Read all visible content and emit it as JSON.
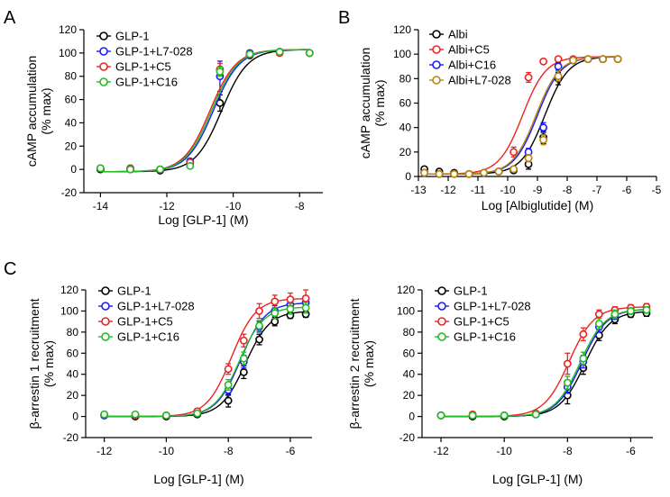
{
  "chart_data": [
    {
      "panel": "A",
      "type": "scatter",
      "ylabel_line1": "cAMP accumulation",
      "ylabel_line2": "(% max)",
      "xlabel": "Log [GLP-1] (M)",
      "xlim": [
        -14.5,
        -7.3
      ],
      "ylim": [
        -20,
        120
      ],
      "xticks": [
        -14,
        -12,
        -10,
        -8
      ],
      "yticks": [
        -20,
        0,
        20,
        40,
        60,
        80,
        100,
        120
      ],
      "x": [
        -14,
        -13.1,
        -12.2,
        -11.3,
        -10.4,
        -9.5,
        -8.6,
        -7.7
      ],
      "series": [
        {
          "name": "GLP-1",
          "color": "#000000",
          "values": [
            0,
            0,
            -1,
            5,
            57,
            98,
            101,
            100
          ],
          "err": [
            2,
            2,
            2,
            2,
            7,
            2,
            2,
            2
          ],
          "ec50": -10.35,
          "bottom": -2,
          "top": 103
        },
        {
          "name": "GLP-1+L7-028",
          "color": "#1a1aff",
          "values": [
            1,
            1,
            0,
            7,
            80,
            100,
            101,
            100
          ],
          "err": [
            2,
            2,
            2,
            2,
            13,
            2,
            2,
            2
          ],
          "ec50": -10.6,
          "bottom": -2,
          "top": 103
        },
        {
          "name": "GLP-1+C5",
          "color": "#ee2222",
          "values": [
            1,
            1,
            0,
            6,
            86,
            99,
            100,
            100
          ],
          "err": [
            2,
            2,
            2,
            2,
            5,
            2,
            2,
            2
          ],
          "ec50": -10.7,
          "bottom": -2,
          "top": 103
        },
        {
          "name": "GLP-1+C16",
          "color": "#22bb22",
          "values": [
            1,
            0,
            0,
            3,
            84,
            99,
            101,
            100
          ],
          "err": [
            2,
            2,
            2,
            2,
            4,
            2,
            2,
            2
          ],
          "ec50": -10.65,
          "bottom": -2,
          "top": 103
        }
      ]
    },
    {
      "panel": "B",
      "type": "scatter",
      "ylabel_line1": "cAMP accumulation",
      "ylabel_line2": "(% max)",
      "xlabel": "Log [Albiglutide] (M)",
      "xlim": [
        -13,
        -5
      ],
      "ylim": [
        0,
        120
      ],
      "xticks": [
        -13,
        -12,
        -11,
        -10,
        -9,
        -8,
        -7,
        -6,
        -5
      ],
      "yticks": [
        0,
        20,
        40,
        60,
        80,
        100,
        120
      ],
      "x": [
        -12.8,
        -12.3,
        -11.8,
        -11.3,
        -10.8,
        -10.3,
        -9.8,
        -9.3,
        -8.8,
        -8.3,
        -7.8,
        -7.3,
        -6.8,
        -6.3
      ],
      "series": [
        {
          "name": "Albi",
          "color": "#000000",
          "values": [
            6,
            4,
            3,
            2,
            3,
            4,
            5,
            10,
            32,
            80,
            95,
            96,
            96,
            96
          ],
          "err": [
            2,
            2,
            2,
            2,
            2,
            2,
            2,
            4,
            5,
            5,
            2,
            2,
            2,
            2
          ],
          "ec50": -8.75,
          "bottom": 2,
          "top": 98
        },
        {
          "name": "Albi+C5",
          "color": "#ee2222",
          "values": [
            3,
            2,
            2,
            2,
            3,
            4,
            20,
            81,
            94,
            96,
            96,
            96,
            96,
            96
          ],
          "err": [
            2,
            2,
            2,
            2,
            2,
            2,
            4,
            4,
            2,
            2,
            2,
            2,
            2,
            2
          ],
          "ec50": -9.5,
          "bottom": 2,
          "top": 98
        },
        {
          "name": "Albi+C16",
          "color": "#1a1aff",
          "values": [
            3,
            2,
            2,
            2,
            3,
            4,
            6,
            20,
            40,
            90,
            95,
            96,
            96,
            96
          ],
          "err": [
            2,
            2,
            2,
            2,
            2,
            2,
            2,
            3,
            4,
            3,
            2,
            2,
            2,
            2
          ],
          "ec50": -9.0,
          "bottom": 2,
          "top": 98
        },
        {
          "name": "Albi+L7-028",
          "color": "#b8860b",
          "values": [
            3,
            2,
            2,
            2,
            3,
            4,
            6,
            15,
            30,
            82,
            95,
            96,
            96,
            96
          ],
          "err": [
            2,
            2,
            2,
            2,
            2,
            2,
            2,
            3,
            4,
            4,
            2,
            2,
            2,
            2
          ],
          "ec50": -9.05,
          "bottom": 2,
          "top": 98
        }
      ]
    },
    {
      "panel": "C",
      "type": "scatter",
      "ylabel_line1": "β-arrestin 1 recruitment",
      "ylabel_line2": "(% max)",
      "xlabel": "Log [GLP-1] (M)",
      "xlim": [
        -12.6,
        -5.3
      ],
      "ylim": [
        -20,
        120
      ],
      "xticks": [
        -12,
        -10,
        -8,
        -6
      ],
      "yticks": [
        -20,
        0,
        20,
        40,
        60,
        80,
        100,
        120
      ],
      "x": [
        -12,
        -11,
        -10,
        -9,
        -8,
        -7.5,
        -7,
        -6.5,
        -6,
        -5.5
      ],
      "series": [
        {
          "name": "GLP-1",
          "color": "#000000",
          "values": [
            1,
            0,
            0,
            2,
            15,
            42,
            73,
            90,
            96,
            97
          ],
          "err": [
            2,
            2,
            2,
            2,
            6,
            6,
            5,
            4,
            3,
            3
          ],
          "ec50": -7.45,
          "bottom": 0,
          "top": 100
        },
        {
          "name": "GLP-1+L7-028",
          "color": "#1a1aff",
          "values": [
            1,
            1,
            1,
            3,
            25,
            52,
            85,
            100,
            106,
            108
          ],
          "err": [
            2,
            2,
            2,
            2,
            5,
            6,
            5,
            5,
            5,
            5
          ],
          "ec50": -7.6,
          "bottom": 0,
          "top": 108
        },
        {
          "name": "GLP-1+C5",
          "color": "#ee2222",
          "values": [
            2,
            1,
            1,
            5,
            45,
            72,
            100,
            109,
            111,
            112
          ],
          "err": [
            2,
            2,
            2,
            2,
            5,
            6,
            7,
            6,
            6,
            8
          ],
          "ec50": -7.9,
          "bottom": 0,
          "top": 112
        },
        {
          "name": "GLP-1+C16",
          "color": "#22bb22",
          "values": [
            2,
            2,
            1,
            3,
            30,
            55,
            86,
            98,
            102,
            103
          ],
          "err": [
            2,
            2,
            2,
            2,
            5,
            6,
            5,
            5,
            5,
            5
          ],
          "ec50": -7.65,
          "bottom": 0,
          "top": 104
        }
      ]
    },
    {
      "panel": "",
      "type": "scatter",
      "ylabel_line1": "β-arrestin 2 recruitment",
      "ylabel_line2": "(% max)",
      "xlabel": "Log [GLP-1] (M)",
      "xlim": [
        -12.6,
        -5.3
      ],
      "ylim": [
        -20,
        120
      ],
      "xticks": [
        -12,
        -10,
        -8,
        -6
      ],
      "yticks": [
        -20,
        0,
        20,
        40,
        60,
        80,
        100,
        120
      ],
      "x": [
        -12,
        -11,
        -10,
        -9,
        -8,
        -7.5,
        -7,
        -6.5,
        -6,
        -5.5
      ],
      "series": [
        {
          "name": "GLP-1",
          "color": "#000000",
          "values": [
            1,
            0,
            0,
            2,
            20,
            46,
            77,
            92,
            97,
            98
          ],
          "err": [
            2,
            2,
            2,
            2,
            8,
            6,
            5,
            4,
            3,
            3
          ],
          "ec50": -7.45,
          "bottom": 0,
          "top": 100
        },
        {
          "name": "GLP-1+L7-028",
          "color": "#1a1aff",
          "values": [
            1,
            1,
            1,
            2,
            28,
            52,
            85,
            96,
            100,
            101
          ],
          "err": [
            2,
            2,
            2,
            2,
            6,
            6,
            5,
            4,
            3,
            3
          ],
          "ec50": -7.55,
          "bottom": 0,
          "top": 102
        },
        {
          "name": "GLP-1+C5",
          "color": "#ee2222",
          "values": [
            1,
            2,
            1,
            3,
            50,
            78,
            97,
            101,
            103,
            104
          ],
          "err": [
            2,
            2,
            2,
            2,
            10,
            6,
            4,
            3,
            3,
            3
          ],
          "ec50": -7.95,
          "bottom": 0,
          "top": 104
        },
        {
          "name": "GLP-1+C16",
          "color": "#22bb22",
          "values": [
            1,
            1,
            1,
            2,
            32,
            55,
            88,
            97,
            100,
            101
          ],
          "err": [
            2,
            2,
            2,
            2,
            6,
            6,
            5,
            4,
            3,
            3
          ],
          "ec50": -7.6,
          "bottom": 0,
          "top": 102
        }
      ]
    }
  ]
}
